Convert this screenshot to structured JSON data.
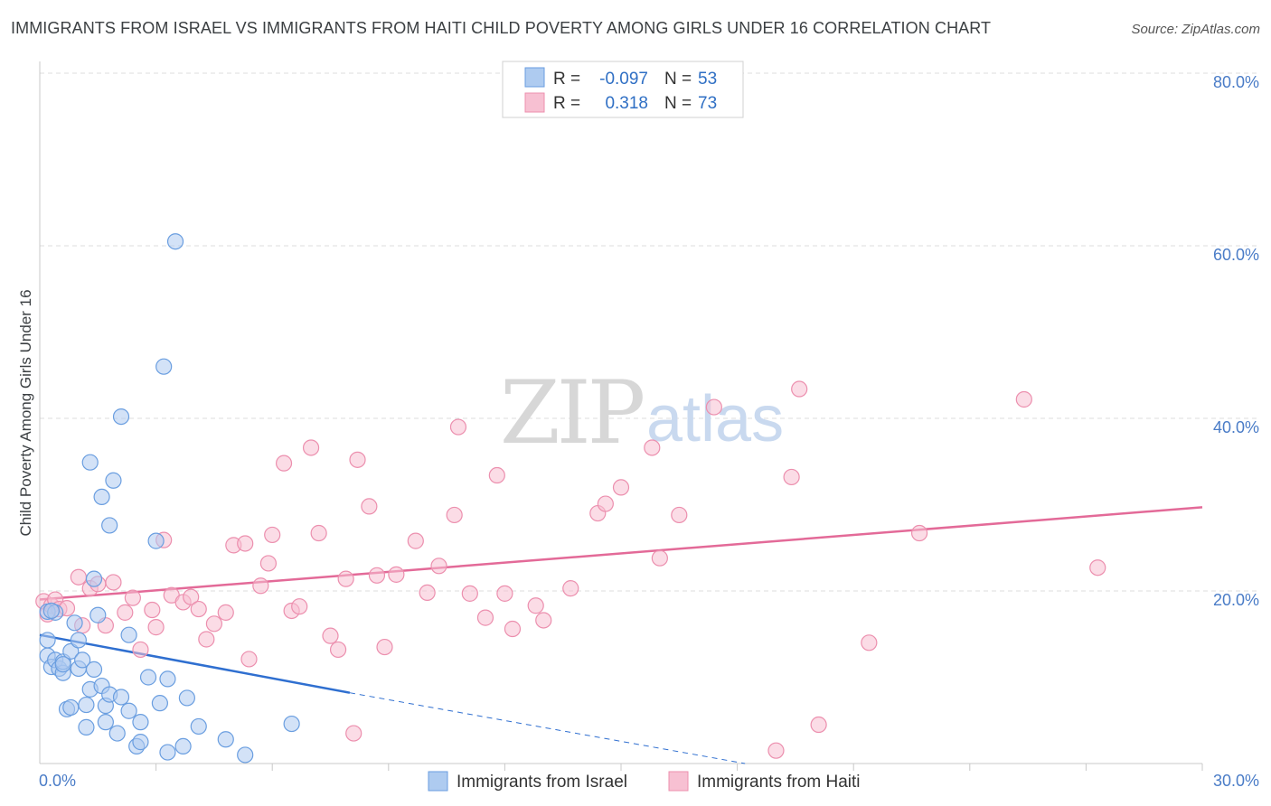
{
  "title": "IMMIGRANTS FROM ISRAEL VS IMMIGRANTS FROM HAITI CHILD POVERTY AMONG GIRLS UNDER 16 CORRELATION CHART",
  "source": "Source: ZipAtlas.com",
  "watermark": {
    "zip": "ZIP",
    "atlas": "atlas"
  },
  "colors": {
    "israel_fill": "#aecbf0",
    "israel_stroke": "#6a9ee0",
    "israel_line": "#2f6fd0",
    "haiti_fill": "#f7c0d2",
    "haiti_stroke": "#ec8fae",
    "haiti_line": "#e36a98",
    "grid": "#dcdcdc",
    "axis_label": "#4a7cc7"
  },
  "legend": {
    "rows": [
      {
        "r_label": "R =",
        "r_value": "-0.097",
        "n_label": "N =",
        "n_value": "53"
      },
      {
        "r_label": "R =",
        "r_value": "0.318",
        "n_label": "N =",
        "n_value": "73"
      }
    ]
  },
  "chart_data": {
    "type": "scatter",
    "title": "IMMIGRANTS FROM ISRAEL VS IMMIGRANTS FROM HAITI CHILD POVERTY AMONG GIRLS UNDER 16 CORRELATION CHART",
    "xlabel": "",
    "ylabel": "Child Poverty Among Girls Under 16",
    "xlim": [
      0,
      30
    ],
    "ylim": [
      0,
      80
    ],
    "x_tick_labels": [
      "0.0%",
      "30.0%"
    ],
    "y_tick_labels": [
      "20.0%",
      "40.0%",
      "60.0%",
      "80.0%"
    ],
    "y_ticks": [
      20,
      40,
      60,
      80
    ],
    "legend_position": "top-center",
    "series": [
      {
        "name": "Immigrants from Israel",
        "R": -0.097,
        "N": 53,
        "trend": {
          "x0": 0,
          "y0": 14.9,
          "x1": 8,
          "y1": 8.2,
          "dash_x1": 18.2,
          "dash_y1": 0
        },
        "points": [
          [
            0.2,
            17.6
          ],
          [
            0.2,
            14.3
          ],
          [
            0.2,
            12.5
          ],
          [
            0.3,
            11.2
          ],
          [
            0.4,
            17.5
          ],
          [
            0.4,
            12.0
          ],
          [
            0.5,
            11.0
          ],
          [
            0.6,
            10.5
          ],
          [
            0.6,
            11.8
          ],
          [
            0.7,
            6.3
          ],
          [
            0.8,
            6.5
          ],
          [
            0.8,
            13.0
          ],
          [
            0.9,
            16.3
          ],
          [
            1.0,
            14.3
          ],
          [
            1.0,
            11.0
          ],
          [
            1.1,
            12.0
          ],
          [
            1.2,
            6.8
          ],
          [
            1.2,
            4.2
          ],
          [
            1.3,
            34.9
          ],
          [
            1.3,
            8.6
          ],
          [
            1.4,
            10.9
          ],
          [
            1.4,
            21.4
          ],
          [
            1.5,
            17.2
          ],
          [
            1.6,
            30.9
          ],
          [
            1.6,
            9.0
          ],
          [
            1.7,
            4.8
          ],
          [
            1.7,
            6.7
          ],
          [
            1.8,
            27.6
          ],
          [
            1.8,
            8.0
          ],
          [
            1.9,
            32.8
          ],
          [
            2.0,
            3.5
          ],
          [
            2.1,
            40.2
          ],
          [
            2.1,
            7.7
          ],
          [
            2.3,
            6.1
          ],
          [
            2.3,
            14.9
          ],
          [
            2.5,
            2.0
          ],
          [
            2.6,
            4.8
          ],
          [
            2.6,
            2.5
          ],
          [
            2.8,
            10.0
          ],
          [
            3.0,
            25.8
          ],
          [
            3.1,
            7.0
          ],
          [
            3.2,
            46.0
          ],
          [
            3.3,
            1.3
          ],
          [
            3.3,
            9.8
          ],
          [
            3.5,
            60.5
          ],
          [
            3.7,
            2.0
          ],
          [
            3.8,
            7.6
          ],
          [
            4.1,
            4.3
          ],
          [
            4.8,
            2.8
          ],
          [
            5.3,
            1.0
          ],
          [
            6.5,
            4.6
          ],
          [
            0.3,
            17.7
          ],
          [
            0.6,
            11.5
          ]
        ]
      },
      {
        "name": "Immigrants from Haiti",
        "R": 0.318,
        "N": 73,
        "trend": {
          "x0": 0,
          "y0": 19.0,
          "x1": 30,
          "y1": 29.7
        },
        "points": [
          [
            0.1,
            18.8
          ],
          [
            0.2,
            17.3
          ],
          [
            0.3,
            18.3
          ],
          [
            0.4,
            19.0
          ],
          [
            0.5,
            17.9
          ],
          [
            0.7,
            18.0
          ],
          [
            1.0,
            21.6
          ],
          [
            1.1,
            16.0
          ],
          [
            1.3,
            20.3
          ],
          [
            1.5,
            20.8
          ],
          [
            1.7,
            16.0
          ],
          [
            1.9,
            21.0
          ],
          [
            2.2,
            17.5
          ],
          [
            2.4,
            19.2
          ],
          [
            2.6,
            13.2
          ],
          [
            2.9,
            17.8
          ],
          [
            3.0,
            15.8
          ],
          [
            3.2,
            25.9
          ],
          [
            3.4,
            19.5
          ],
          [
            3.7,
            18.7
          ],
          [
            3.9,
            19.3
          ],
          [
            4.1,
            17.9
          ],
          [
            4.3,
            14.4
          ],
          [
            4.5,
            16.2
          ],
          [
            4.8,
            17.5
          ],
          [
            5.0,
            25.3
          ],
          [
            5.3,
            25.5
          ],
          [
            5.4,
            12.1
          ],
          [
            5.7,
            20.6
          ],
          [
            5.9,
            23.2
          ],
          [
            6.0,
            26.5
          ],
          [
            6.3,
            34.8
          ],
          [
            6.5,
            17.7
          ],
          [
            6.7,
            18.2
          ],
          [
            7.0,
            36.6
          ],
          [
            7.2,
            26.7
          ],
          [
            7.5,
            14.8
          ],
          [
            7.7,
            13.2
          ],
          [
            7.9,
            21.4
          ],
          [
            8.1,
            3.5
          ],
          [
            8.2,
            35.2
          ],
          [
            8.5,
            29.8
          ],
          [
            8.7,
            21.8
          ],
          [
            8.9,
            13.5
          ],
          [
            9.2,
            21.9
          ],
          [
            9.7,
            25.8
          ],
          [
            10.0,
            19.8
          ],
          [
            10.3,
            22.9
          ],
          [
            10.7,
            28.8
          ],
          [
            10.8,
            39.0
          ],
          [
            11.1,
            19.7
          ],
          [
            11.5,
            16.9
          ],
          [
            11.8,
            33.4
          ],
          [
            12.0,
            19.7
          ],
          [
            12.2,
            15.6
          ],
          [
            12.8,
            18.3
          ],
          [
            13.0,
            16.6
          ],
          [
            13.7,
            20.3
          ],
          [
            14.4,
            29.0
          ],
          [
            14.6,
            30.1
          ],
          [
            15.0,
            32.0
          ],
          [
            15.8,
            36.6
          ],
          [
            16.0,
            23.8
          ],
          [
            16.5,
            28.8
          ],
          [
            17.4,
            41.3
          ],
          [
            19.0,
            1.5
          ],
          [
            19.4,
            33.2
          ],
          [
            19.6,
            43.4
          ],
          [
            20.1,
            4.5
          ],
          [
            21.4,
            14.0
          ],
          [
            22.7,
            26.7
          ],
          [
            25.4,
            42.2
          ],
          [
            27.3,
            22.7
          ]
        ]
      }
    ]
  },
  "bottom_legend": [
    {
      "label": "Immigrants from Israel"
    },
    {
      "label": "Immigrants from Haiti"
    }
  ]
}
